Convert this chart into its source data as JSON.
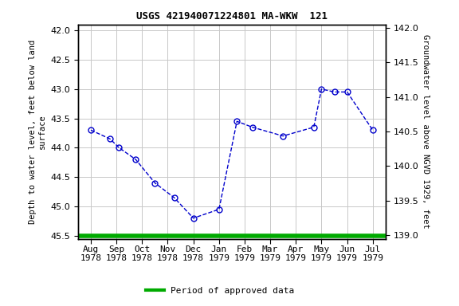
{
  "title": "USGS 421940071224801 MA-WKW  121",
  "x_labels": [
    "Aug\n1978",
    "Sep\n1978",
    "Oct\n1978",
    "Nov\n1978",
    "Dec\n1978",
    "Jan\n1979",
    "Feb\n1979",
    "Mar\n1979",
    "Apr\n1979",
    "May\n1979",
    "Jun\n1979",
    "Jul\n1979"
  ],
  "pts_x": [
    0,
    0.75,
    1.1,
    1.75,
    2.5,
    3.25,
    4.0,
    5.0,
    5.7,
    6.3,
    7.5,
    8.7,
    9.0,
    9.5,
    10.0,
    11.0
  ],
  "pts_y": [
    43.7,
    43.85,
    44.0,
    44.2,
    44.6,
    44.85,
    45.2,
    45.05,
    43.55,
    43.65,
    43.8,
    43.65,
    43.0,
    43.05,
    43.05,
    43.7
  ],
  "ylabel_left": "Depth to water level, feet below land\nsurface",
  "ylabel_right": "Groundwater level above NGVD 1929, feet",
  "ylim_left": [
    45.55,
    41.9
  ],
  "ylim_right": [
    138.95,
    142.05
  ],
  "yticks_left": [
    42.0,
    42.5,
    43.0,
    43.5,
    44.0,
    44.5,
    45.0,
    45.5
  ],
  "yticks_right": [
    139.0,
    139.5,
    140.0,
    140.5,
    141.0,
    141.5,
    142.0
  ],
  "line_color": "#0000cc",
  "marker_color": "#0000cc",
  "plot_bg": "#ffffff",
  "fig_bg": "#ffffff",
  "grid_color": "#c8c8c8",
  "legend_label": "Period of approved data",
  "legend_color": "#00aa00",
  "title_fontsize": 9,
  "label_fontsize": 7.5,
  "tick_fontsize": 8
}
